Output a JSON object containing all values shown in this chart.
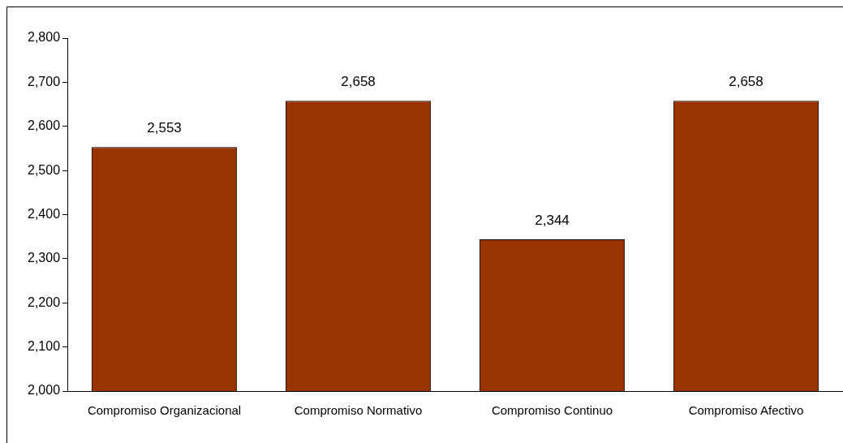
{
  "chart_data": {
    "type": "bar",
    "categories": [
      "Compromiso Organizacional",
      "Compromiso Normativo",
      "Compromiso Continuo",
      "Compromiso Afectivo"
    ],
    "values": [
      2553,
      2658,
      2344,
      2658
    ],
    "value_labels": [
      "2,553",
      "2,658",
      "2,344",
      "2,658"
    ],
    "color": "#993300",
    "ylim": [
      2000,
      2800
    ],
    "yticks": [
      {
        "value": 2000,
        "label": "2,000"
      },
      {
        "value": 2100,
        "label": "2,100"
      },
      {
        "value": 2200,
        "label": "2,200"
      },
      {
        "value": 2300,
        "label": "2,300"
      },
      {
        "value": 2400,
        "label": "2,400"
      },
      {
        "value": 2500,
        "label": "2,500"
      },
      {
        "value": 2600,
        "label": "2,600"
      },
      {
        "value": 2700,
        "label": "2,700"
      },
      {
        "value": 2800,
        "label": "2,800"
      }
    ],
    "grid": false,
    "legend": false
  }
}
